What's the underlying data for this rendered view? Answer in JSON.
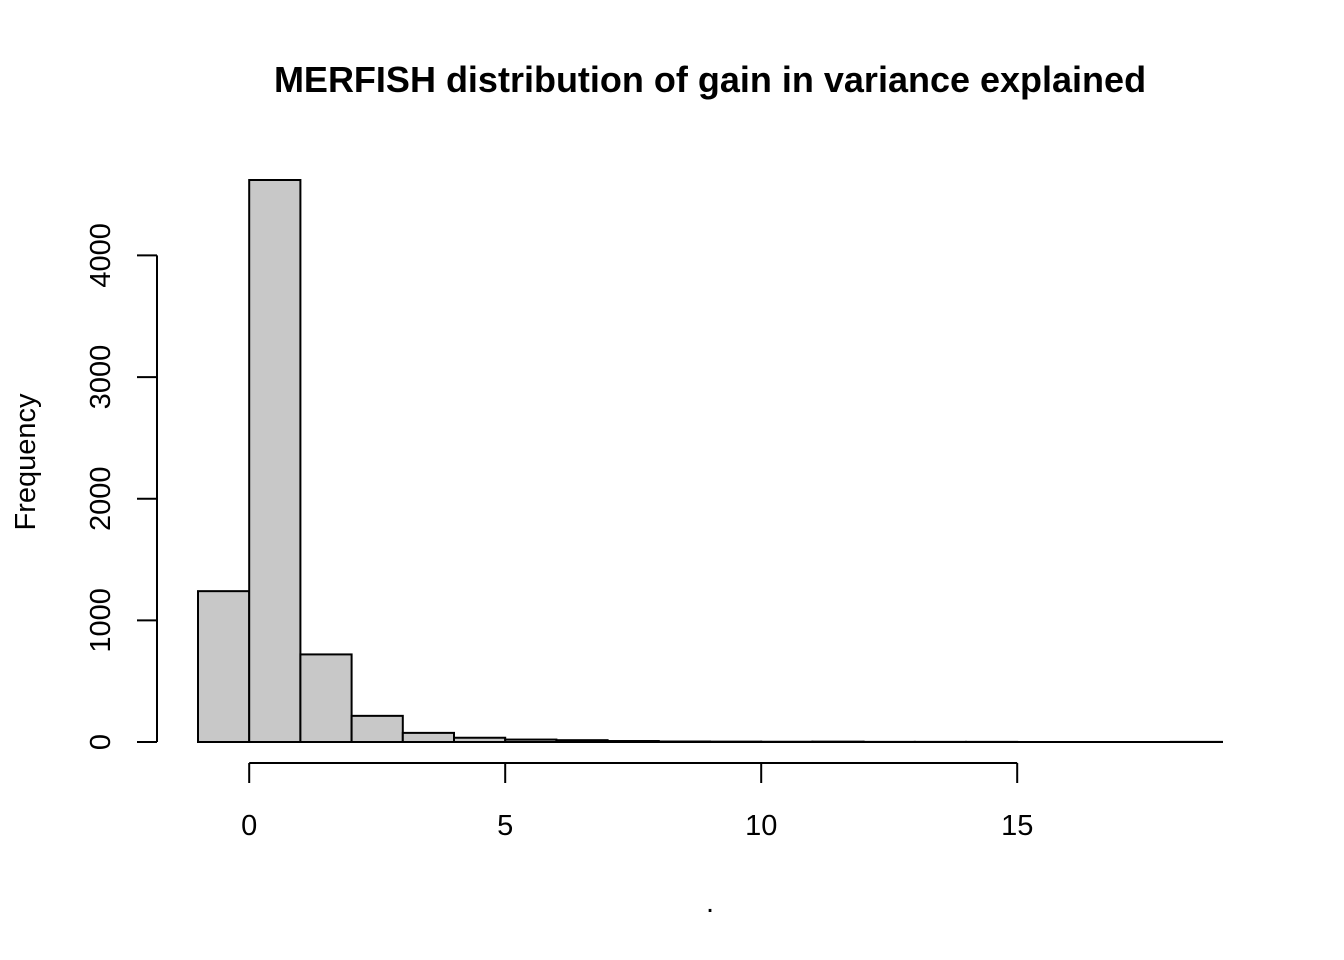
{
  "chart_data": {
    "type": "bar",
    "subtype": "histogram",
    "title": "MERFISH distribution of gain in variance explained",
    "xlabel": ".",
    "ylabel": "Frequency",
    "bin_edges": [
      -1,
      0,
      1,
      2,
      3,
      4,
      5,
      6,
      7,
      8,
      9,
      10,
      11,
      12,
      13,
      14,
      15,
      16,
      17,
      18,
      19
    ],
    "values": [
      1240,
      4620,
      720,
      215,
      75,
      35,
      20,
      15,
      8,
      4,
      3,
      2,
      3,
      1,
      1,
      1,
      0,
      0,
      0,
      1
    ],
    "x_ticks": [
      0,
      5,
      10,
      15
    ],
    "x_tick_labels": [
      "0",
      "5",
      "10",
      "15"
    ],
    "y_ticks": [
      0,
      1000,
      2000,
      3000,
      4000
    ],
    "y_tick_labels": [
      "0",
      "1000",
      "2000",
      "3000",
      "4000"
    ],
    "xlim": [
      -1,
      19
    ],
    "ylim": [
      0,
      4620
    ],
    "bar_color": "#c8c8c8",
    "grid": false,
    "legend": "none"
  }
}
